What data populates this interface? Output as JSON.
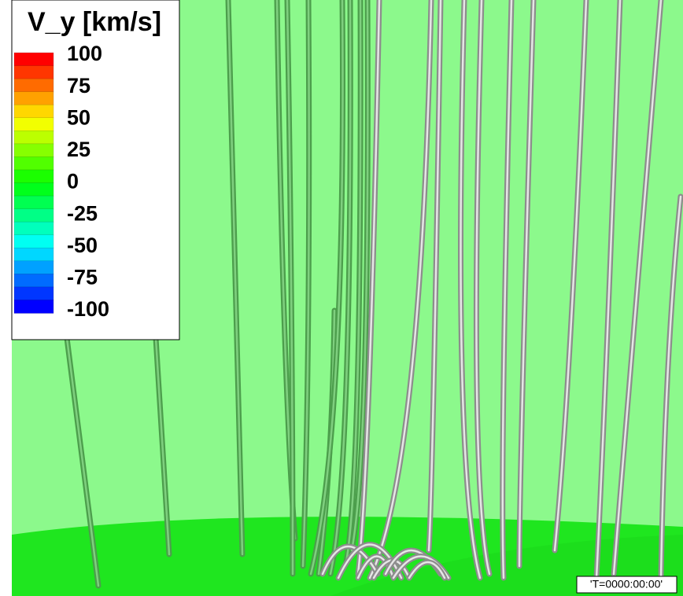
{
  "legend": {
    "title": "V_y [km/s]",
    "ticks": [
      100,
      75,
      50,
      25,
      0,
      -25,
      -50,
      -75,
      -100
    ]
  },
  "timestamp": "'T=0000:00:00'"
}
